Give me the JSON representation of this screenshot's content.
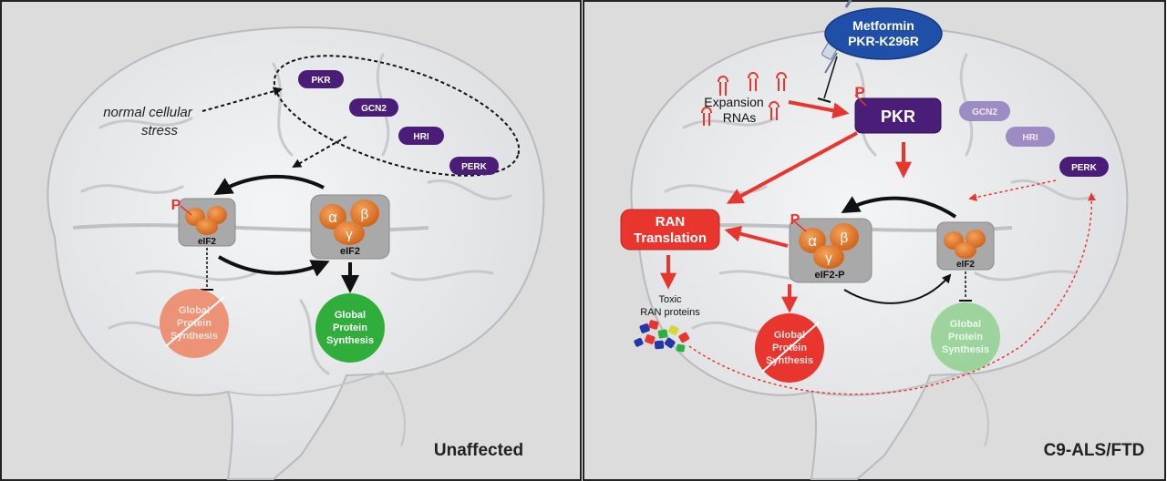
{
  "left_panel": {
    "label": "Unaffected",
    "stress_text_line1": "normal cellular",
    "stress_text_line2": "stress",
    "kinases": [
      "PKR",
      "GCN2",
      "HRI",
      "PERK"
    ],
    "eif2_phospho_label": "eIF2",
    "eif2_label": "eIF2",
    "phospho_mark": "P",
    "subunits": {
      "alpha": "α",
      "beta": "β",
      "gamma": "γ"
    },
    "inhibited_synthesis": [
      "Global",
      "Protein",
      "Synthesis"
    ],
    "active_synthesis": [
      "Global",
      "Protein",
      "Synthesis"
    ]
  },
  "right_panel": {
    "label": "C9-ALS/FTD",
    "drug_line1": "Metformin",
    "drug_line2": "PKR-K296R",
    "expansion_line1": "Expansion",
    "expansion_line2": "RNAs",
    "pkr_label": "PKR",
    "phospho_mark": "P",
    "faded_kinases": [
      "GCN2",
      "HRI"
    ],
    "perk_label": "PERK",
    "ran_line1": "RAN",
    "ran_line2": "Translation",
    "toxic_line1": "Toxic",
    "toxic_line2": "RAN proteins",
    "eif2p_label": "eIF2-P",
    "eif2_label": "eIF2",
    "subunits": {
      "alpha": "α",
      "beta": "β",
      "gamma": "γ"
    },
    "inhibited_synthesis": [
      "Global",
      "Protein",
      "Synthesis"
    ],
    "faded_synthesis": [
      "Global",
      "Protein",
      "Synthesis"
    ]
  },
  "colors": {
    "purple": "#4a1e78",
    "light_purple": "#9d8bc4",
    "red": "#e8352d",
    "green": "#2fae3c",
    "salmon": "#ec8a6a",
    "orange": "#e2782a",
    "gray_box": "#a9a9a9",
    "brain": "#e9eaec"
  }
}
